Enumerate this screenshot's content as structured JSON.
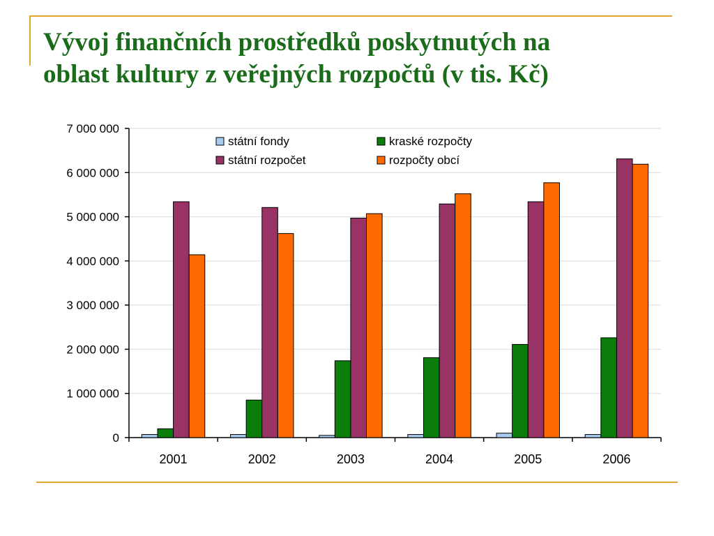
{
  "slide": {
    "title_line1": "Vývoj finančních prostředků poskytnutých na",
    "title_line2": "oblast kultury z veřejných rozpočtů (v tis. Kč)",
    "accent_color": "#e0a72e",
    "title_color": "#1a6b1a"
  },
  "chart_data": {
    "type": "bar",
    "title": "",
    "xlabel": "",
    "ylabel": "",
    "categories": [
      "2001",
      "2002",
      "2003",
      "2004",
      "2005",
      "2006"
    ],
    "ylim": [
      0,
      7000000
    ],
    "yticks": [
      0,
      1000000,
      2000000,
      3000000,
      4000000,
      5000000,
      6000000,
      7000000
    ],
    "ytick_labels": [
      "0",
      "1 000 000",
      "2 000 000",
      "3 000 000",
      "4 000 000",
      "5 000 000",
      "6 000 000",
      "7 000 000"
    ],
    "grid": true,
    "legend_position": "top",
    "series": [
      {
        "name": "státní fondy",
        "color": "#a6cbf0",
        "values": [
          70000,
          70000,
          50000,
          70000,
          100000,
          70000
        ]
      },
      {
        "name": "kraské rozpočty",
        "color": "#0a7d0a",
        "values": [
          200000,
          850000,
          1740000,
          1810000,
          2110000,
          2260000
        ]
      },
      {
        "name": "státní rozpočet",
        "color": "#993366",
        "values": [
          5340000,
          5210000,
          4970000,
          5290000,
          5340000,
          6310000
        ]
      },
      {
        "name": "rozpočty obcí",
        "color": "#ff6a00",
        "values": [
          4140000,
          4620000,
          5070000,
          5520000,
          5770000,
          6190000
        ]
      }
    ]
  }
}
